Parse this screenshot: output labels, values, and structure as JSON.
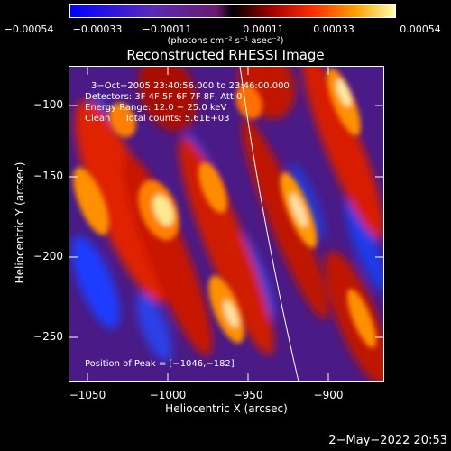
{
  "colorbar": {
    "ticks": [
      "−0.00054",
      "−0.00033",
      "−0.00011",
      "0.00011",
      "0.00033",
      "0.00054"
    ],
    "units": "(photons cm⁻² s⁻¹ asec⁻²)"
  },
  "title": "Reconstructed RHESSI Image",
  "annotations": {
    "time": "3−Oct−2005 23:40:56.000 to 23:46:00.000",
    "detectors": "Detectors: 3F 4F 5F 6F 7F 8F, Att 0",
    "energy": "Energy Range: 12.0 − 25.0 keV",
    "clean": "Clean     Total counts: 5.61E+03",
    "peak": "Position of Peak = [−1046,−182]"
  },
  "axes": {
    "xlabel": "Heliocentric X (arcsec)",
    "ylabel": "Heliocentric Y (arcsec)",
    "xticks": [
      "−1050",
      "−1000",
      "−950",
      "−900"
    ],
    "yticks": [
      "−100",
      "−150",
      "−200",
      "−250"
    ],
    "xrange": [
      -1062,
      -866
    ],
    "yrange": [
      -75,
      -274
    ]
  },
  "footer": "2−May−2022 20:53"
}
